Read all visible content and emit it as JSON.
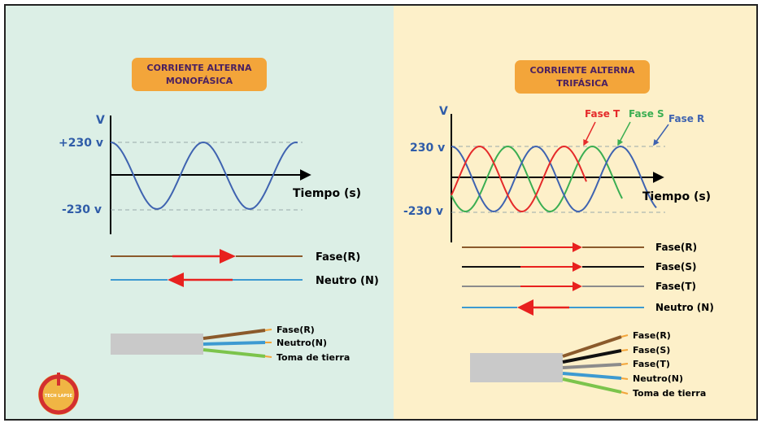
{
  "colors": {
    "left_panel_bg": "#dcefe6",
    "right_panel_bg": "#fdf0c9",
    "badge_fill": "#f3a53a",
    "badge_text": "#4a2060",
    "axis_text": "#2f5ca8",
    "phase_r": "#3f63b0",
    "phase_s": "#3bae52",
    "phase_t": "#e52a2a",
    "wire_brown": "#8b5a2b",
    "wire_blue": "#3d9ad1",
    "wire_ground": "#7cc44c",
    "wire_black": "#111111",
    "wire_grey": "#8c8c8c",
    "arrow_red": "#e8211f",
    "cable_grey": "#c9c9c9"
  },
  "monophase": {
    "badge_line1": "CORRIENTE ALTERNA",
    "badge_line2": "MONOFÁSICA",
    "y_axis_label": "V",
    "y_pos_label": "+230 v",
    "y_neg_label": "-230 v",
    "x_axis_label": "Tiempo (s)",
    "conductors": [
      {
        "label": "Fase(R)",
        "direction": "right"
      },
      {
        "label": "Neutro (N)",
        "direction": "left"
      }
    ],
    "cable_labels": [
      "Fase(R)",
      "Neutro(N)",
      "Toma de tierra"
    ]
  },
  "triphase": {
    "badge_line1": "CORRIENTE ALTERNA",
    "badge_line2": "TRIFÁSICA",
    "y_axis_label": "V",
    "y_pos_label": "230 v",
    "y_neg_label": "-230 v",
    "x_axis_label": "Tiempo (s)",
    "wave_labels": {
      "t": "Fase T",
      "s": "Fase S",
      "r": "Fase R"
    },
    "conductors": [
      {
        "label": "Fase(R)",
        "direction": "right"
      },
      {
        "label": "Fase(S)",
        "direction": "right"
      },
      {
        "label": "Fase(T)",
        "direction": "right"
      },
      {
        "label": "Neutro (N)",
        "direction": "left"
      }
    ],
    "cable_labels": [
      "Fase(R)",
      "Fase(S)",
      "Fase(T)",
      "Neutro(N)",
      "Toma de tierra"
    ]
  },
  "logo": {
    "text": "TECH LAPSE"
  }
}
